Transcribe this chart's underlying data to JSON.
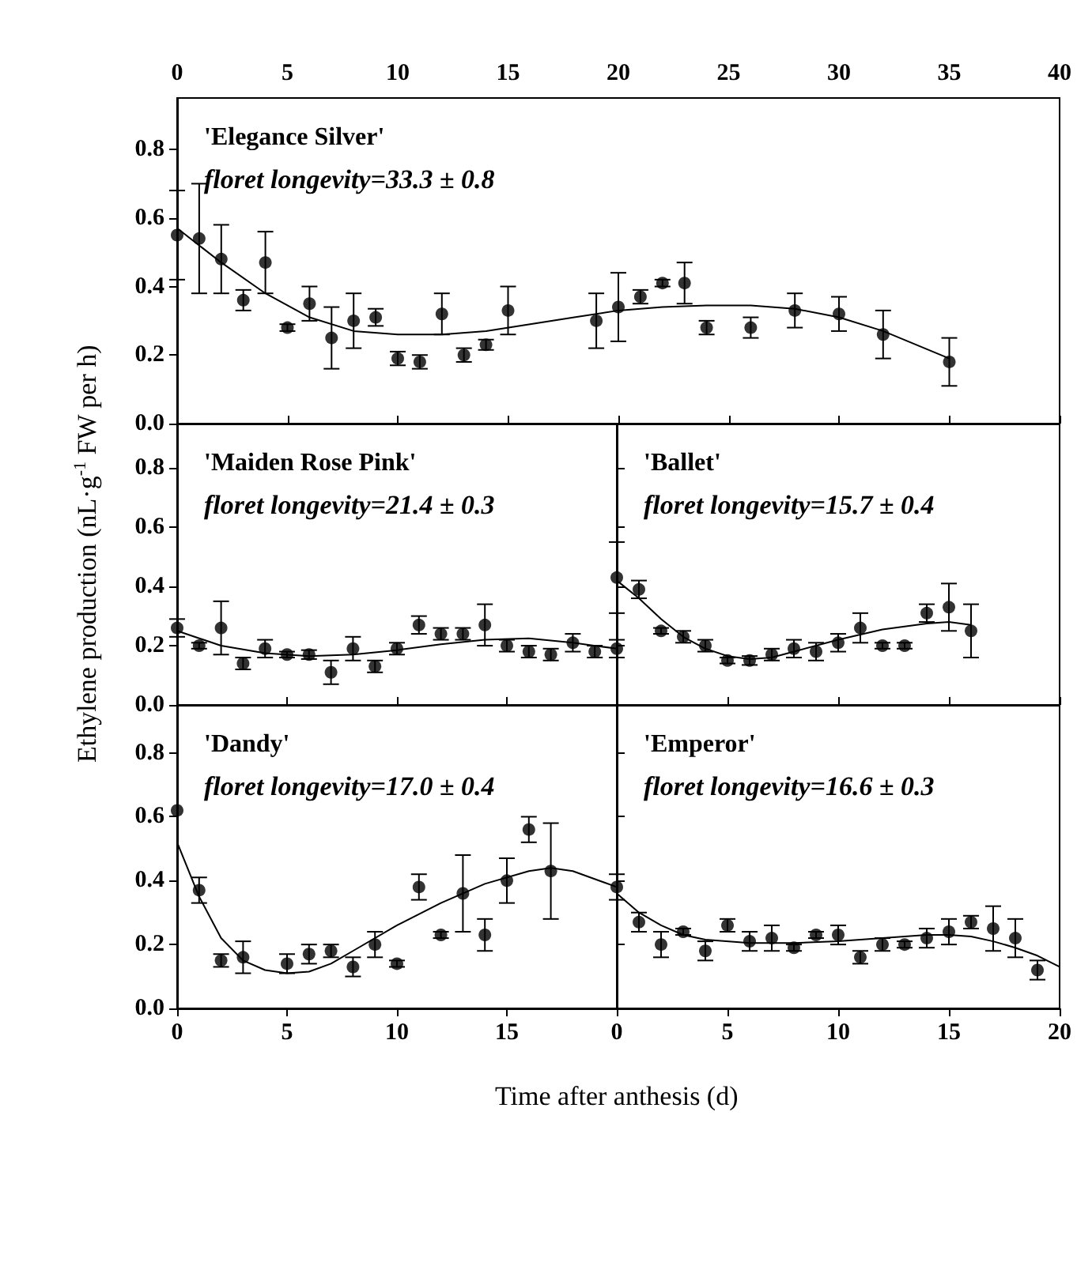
{
  "chart_data": [
    {
      "type": "scatter",
      "title": "'Elegance Silver'",
      "subtitle": "floret longevity=33.3 ± 0.8",
      "xlim": [
        0,
        40
      ],
      "xticks": [
        0,
        5,
        10,
        15,
        20,
        25,
        30,
        35,
        40
      ],
      "ylim": [
        0,
        0.95
      ],
      "yticks": [
        {
          "value": 0,
          "label": "0.0"
        },
        {
          "value": 0.2,
          "label": "0.2"
        },
        {
          "value": 0.4,
          "label": "0.4"
        },
        {
          "value": 0.6,
          "label": "0.6"
        },
        {
          "value": 0.8,
          "label": "0.8"
        }
      ],
      "marker": "circle",
      "line_style": "solid",
      "grid": false,
      "series": [
        {
          "color": "#000000",
          "x": [
            0,
            1,
            2,
            3,
            4,
            5,
            6,
            7,
            8,
            9,
            10,
            11,
            12,
            13,
            14,
            15,
            19,
            20,
            21,
            22,
            23,
            24,
            26,
            28,
            30,
            32,
            35
          ],
          "values": [
            0.55,
            0.54,
            0.48,
            0.36,
            0.47,
            0.28,
            0.35,
            0.25,
            0.3,
            0.31,
            0.19,
            0.18,
            0.32,
            0.2,
            0.23,
            0.33,
            0.3,
            0.34,
            0.37,
            0.41,
            0.41,
            0.28,
            0.28,
            0.33,
            0.32,
            0.26,
            0.18
          ],
          "errors": [
            0.13,
            0.16,
            0.1,
            0.03,
            0.09,
            0.01,
            0.05,
            0.09,
            0.08,
            0.025,
            0.02,
            0.02,
            0.06,
            0.02,
            0.015,
            0.07,
            0.08,
            0.1,
            0.02,
            0.01,
            0.06,
            0.02,
            0.03,
            0.05,
            0.05,
            0.07,
            0.07
          ]
        },
        {
          "type": "line",
          "marker": "none",
          "color": "#000000",
          "x": [
            0,
            2,
            4,
            6,
            8,
            10,
            12,
            14,
            16,
            18,
            20,
            22,
            24,
            26,
            28,
            30,
            32,
            35
          ],
          "values": [
            0.57,
            0.47,
            0.38,
            0.31,
            0.27,
            0.26,
            0.26,
            0.27,
            0.29,
            0.31,
            0.33,
            0.34,
            0.345,
            0.345,
            0.335,
            0.31,
            0.27,
            0.19
          ]
        }
      ]
    },
    {
      "type": "scatter",
      "title": "'Maiden Rose Pink'",
      "subtitle": "floret longevity=21.4 ± 0.3",
      "ylabel": "Ethylene production (nL·g$^{-1}$ FW per h)",
      "xlim": [
        0,
        20
      ],
      "xticks": [
        0,
        5,
        10,
        15,
        20
      ],
      "ylim": [
        0,
        0.95
      ],
      "yticks": [
        {
          "value": 0,
          "label": "0.0"
        },
        {
          "value": 0.2,
          "label": "0.2"
        },
        {
          "value": 0.4,
          "label": "0.4"
        },
        {
          "value": 0.6,
          "label": "0.6"
        },
        {
          "value": 0.8,
          "label": "0.8"
        }
      ],
      "tick_labels": "y",
      "marker": "circle",
      "line_style": "solid",
      "grid": false,
      "series": [
        {
          "color": "#000000",
          "x": [
            0,
            1,
            2,
            3,
            4,
            5,
            6,
            7,
            8,
            9,
            10,
            11,
            12,
            13,
            14,
            15,
            16,
            17,
            18,
            19,
            20
          ],
          "values": [
            0.26,
            0.2,
            0.26,
            0.14,
            0.19,
            0.17,
            0.17,
            0.11,
            0.19,
            0.13,
            0.19,
            0.27,
            0.24,
            0.24,
            0.27,
            0.2,
            0.18,
            0.17,
            0.21,
            0.18,
            0.19
          ],
          "errors": [
            0.03,
            0.01,
            0.09,
            0.02,
            0.03,
            0.01,
            0.015,
            0.04,
            0.04,
            0.02,
            0.02,
            0.03,
            0.02,
            0.02,
            0.07,
            0.02,
            0.02,
            0.02,
            0.03,
            0.02,
            0.03
          ]
        },
        {
          "type": "line",
          "marker": "none",
          "color": "#000000",
          "x": [
            0,
            2,
            4,
            6,
            8,
            10,
            12,
            14,
            16,
            18,
            20
          ],
          "values": [
            0.25,
            0.2,
            0.175,
            0.165,
            0.17,
            0.185,
            0.205,
            0.22,
            0.225,
            0.21,
            0.19
          ]
        }
      ]
    },
    {
      "type": "scatter",
      "title": "'Ballet'",
      "subtitle": "floret longevity=15.7 ± 0.4",
      "xlim": [
        0,
        20
      ],
      "xticks": [
        0,
        5,
        10,
        15,
        20
      ],
      "ylim": [
        0,
        0.95
      ],
      "yticks": [
        0,
        0.2,
        0.4,
        0.6,
        0.8
      ],
      "tick_labels": false,
      "marker": "circle",
      "line_style": "solid",
      "grid": false,
      "series": [
        {
          "color": "#000000",
          "x": [
            0,
            1,
            2,
            3,
            4,
            5,
            6,
            7,
            8,
            9,
            10,
            11,
            12,
            13,
            14,
            15,
            16
          ],
          "values": [
            0.43,
            0.39,
            0.25,
            0.23,
            0.2,
            0.15,
            0.15,
            0.17,
            0.19,
            0.18,
            0.21,
            0.26,
            0.2,
            0.2,
            0.31,
            0.33,
            0.25
          ],
          "errors": [
            0.12,
            0.03,
            0.01,
            0.02,
            0.02,
            0.01,
            0.015,
            0.02,
            0.03,
            0.03,
            0.03,
            0.05,
            0.01,
            0.01,
            0.03,
            0.08,
            0.09
          ]
        },
        {
          "type": "line",
          "marker": "none",
          "color": "#000000",
          "x": [
            0,
            1,
            2,
            3,
            4,
            5,
            6,
            7,
            8,
            10,
            12,
            14,
            15,
            16
          ],
          "values": [
            0.42,
            0.36,
            0.29,
            0.23,
            0.19,
            0.165,
            0.155,
            0.16,
            0.18,
            0.22,
            0.255,
            0.275,
            0.28,
            0.27
          ]
        }
      ]
    },
    {
      "type": "scatter",
      "title": "'Dandy'",
      "subtitle": "floret longevity=17.0 ± 0.4",
      "xlabel": "Time after anthesis (d)",
      "xlim": [
        0,
        20
      ],
      "xticks": [
        0,
        5,
        10,
        15,
        {
          "value": 20,
          "label": null
        }
      ],
      "ylim": [
        0,
        0.95
      ],
      "yticks": [
        {
          "value": 0,
          "label": "0.0"
        },
        {
          "value": 0.2,
          "label": "0.2"
        },
        {
          "value": 0.4,
          "label": "0.4"
        },
        {
          "value": 0.6,
          "label": "0.6"
        },
        {
          "value": 0.8,
          "label": "0.8"
        }
      ],
      "marker": "circle",
      "line_style": "solid",
      "grid": false,
      "series": [
        {
          "color": "#000000",
          "x": [
            0,
            1,
            2,
            3,
            5,
            6,
            7,
            8,
            9,
            10,
            11,
            12,
            13,
            14,
            15,
            16,
            17
          ],
          "values": [
            0.62,
            0.37,
            0.15,
            0.16,
            0.14,
            0.17,
            0.18,
            0.13,
            0.2,
            0.14,
            0.38,
            0.23,
            0.36,
            0.23,
            0.4,
            0.56,
            0.43
          ],
          "errors": [
            null,
            0.04,
            0.02,
            0.05,
            0.03,
            0.03,
            0.02,
            0.03,
            0.04,
            0.01,
            0.04,
            0.01,
            0.12,
            0.05,
            0.07,
            0.04,
            0.15
          ]
        },
        {
          "type": "line",
          "marker": "none",
          "color": "#000000",
          "x": [
            0,
            1,
            2,
            3,
            4,
            5,
            6,
            7,
            8,
            10,
            12,
            14,
            16,
            17,
            18,
            20
          ],
          "values": [
            0.52,
            0.35,
            0.22,
            0.15,
            0.12,
            0.11,
            0.115,
            0.14,
            0.18,
            0.26,
            0.33,
            0.39,
            0.43,
            0.44,
            0.43,
            0.38
          ]
        }
      ]
    },
    {
      "type": "scatter",
      "title": "'Emperor'",
      "subtitle": "floret longevity=16.6 ± 0.3",
      "xlim": [
        0,
        20
      ],
      "xticks": [
        0,
        5,
        10,
        15,
        20
      ],
      "ylim": [
        0,
        0.95
      ],
      "yticks": [
        0,
        0.2,
        0.4,
        0.6,
        0.8
      ],
      "tick_labels": "x",
      "marker": "circle",
      "line_style": "solid",
      "grid": false,
      "series": [
        {
          "color": "#000000",
          "x": [
            0,
            1,
            2,
            3,
            4,
            5,
            6,
            7,
            8,
            9,
            10,
            11,
            12,
            13,
            14,
            15,
            16,
            17,
            18,
            19
          ],
          "values": [
            0.38,
            0.27,
            0.2,
            0.24,
            0.18,
            0.26,
            0.21,
            0.22,
            0.19,
            0.23,
            0.23,
            0.16,
            0.2,
            0.2,
            0.22,
            0.24,
            0.27,
            0.25,
            0.22,
            0.12
          ],
          "errors": [
            0.04,
            0.03,
            0.04,
            0.01,
            0.03,
            0.02,
            0.03,
            0.04,
            0.01,
            0.01,
            0.03,
            0.02,
            0.02,
            0.01,
            0.03,
            0.04,
            0.02,
            0.07,
            0.06,
            0.03
          ]
        },
        {
          "type": "line",
          "marker": "none",
          "color": "#000000",
          "x": [
            0,
            1,
            2,
            3,
            4,
            6,
            8,
            10,
            12,
            14,
            15,
            16,
            17,
            18,
            19,
            20
          ],
          "values": [
            0.36,
            0.3,
            0.26,
            0.23,
            0.215,
            0.205,
            0.205,
            0.21,
            0.22,
            0.23,
            0.23,
            0.225,
            0.21,
            0.19,
            0.165,
            0.13
          ]
        }
      ]
    }
  ]
}
